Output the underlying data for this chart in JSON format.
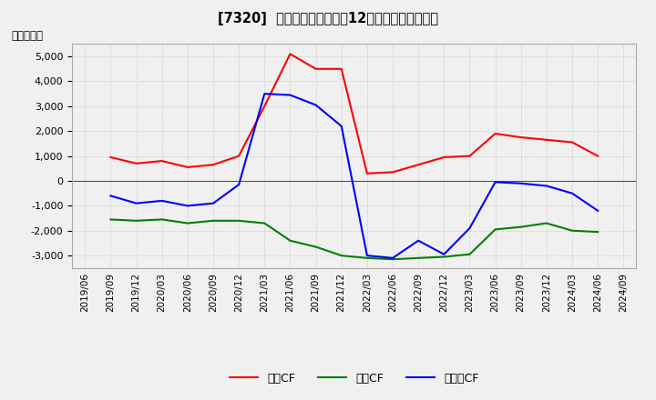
{
  "title": "[7320]  キャッシュフローの12か月移動合計の推移",
  "ylabel": "（百万円）",
  "background_color": "#f0f0f0",
  "plot_bg_color": "#f0f0f0",
  "grid_color": "#bbbbbb",
  "dates": [
    "2019/06",
    "2019/09",
    "2019/12",
    "2020/03",
    "2020/06",
    "2020/09",
    "2020/12",
    "2021/03",
    "2021/06",
    "2021/09",
    "2021/12",
    "2022/03",
    "2022/06",
    "2022/09",
    "2022/12",
    "2023/03",
    "2023/06",
    "2023/09",
    "2023/12",
    "2024/03",
    "2024/06",
    "2024/09"
  ],
  "eigyo_cf": [
    null,
    950,
    700,
    800,
    550,
    650,
    1000,
    3000,
    5100,
    4500,
    4500,
    300,
    350,
    650,
    950,
    1000,
    1900,
    1750,
    1650,
    1550,
    1000,
    null
  ],
  "toshi_cf": [
    null,
    -1550,
    -1600,
    -1550,
    -1700,
    -1600,
    -1600,
    -1700,
    -2400,
    -2650,
    -3000,
    -3100,
    -3150,
    -3100,
    -3050,
    -2950,
    -1950,
    -1850,
    -1700,
    -2000,
    -2050,
    null
  ],
  "free_cf": [
    null,
    -600,
    -900,
    -800,
    -1000,
    -900,
    -150,
    3500,
    3450,
    3050,
    2200,
    -3000,
    -3100,
    -2400,
    -2950,
    -1900,
    -50,
    -100,
    -200,
    -500,
    -1200,
    null
  ],
  "eigyo_color": "#ff0000",
  "toshi_color": "#008000",
  "free_color": "#0000ff",
  "ylim": [
    -3500,
    5500
  ],
  "yticks": [
    -3000,
    -2000,
    -1000,
    0,
    1000,
    2000,
    3000,
    4000,
    5000
  ],
  "legend_labels": [
    "営業CF",
    "投資CF",
    "フリーCF"
  ]
}
